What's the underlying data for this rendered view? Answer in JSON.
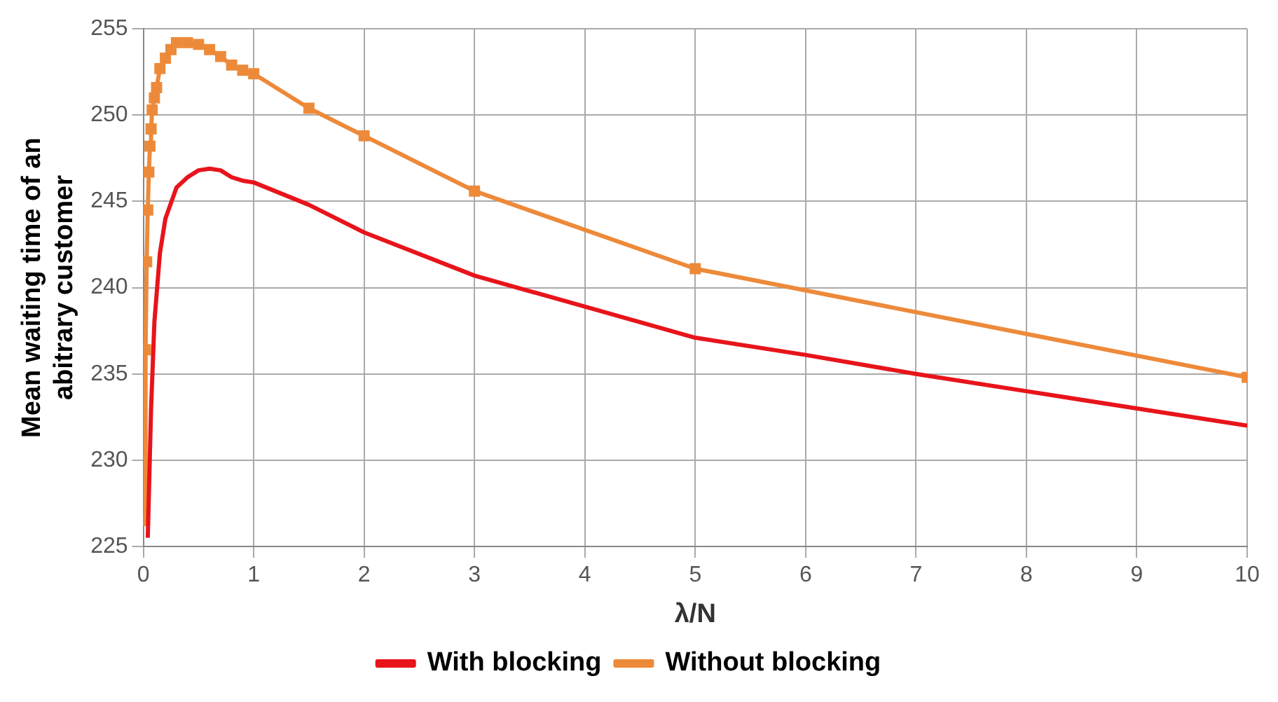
{
  "chart_data": {
    "type": "line",
    "xlabel": "λ/N",
    "ylabel": "Mean waiting time of an abitrary customer",
    "xlim": [
      0,
      10
    ],
    "xticks": [
      0,
      1,
      2,
      3,
      4,
      5,
      6,
      7,
      8,
      9,
      10
    ],
    "ylim": [
      225,
      255
    ],
    "yticks": [
      225,
      230,
      235,
      240,
      245,
      250,
      255
    ],
    "grid": true,
    "legend": "bottom",
    "series": [
      {
        "name": "With blocking",
        "color": "#e8141b",
        "marker": "none",
        "x": [
          0.04,
          0.05,
          0.07,
          0.1,
          0.15,
          0.2,
          0.3,
          0.4,
          0.5,
          0.6,
          0.7,
          0.8,
          0.9,
          1,
          1.5,
          2,
          3,
          4,
          5,
          6,
          7,
          8,
          9,
          10
        ],
        "values": [
          225.5,
          228,
          233,
          238,
          242,
          244,
          245.8,
          246.4,
          246.8,
          246.9,
          246.8,
          246.4,
          246.2,
          246.1,
          244.8,
          243.2,
          240.7,
          238.9,
          237.1,
          236.1,
          235,
          234,
          233,
          232
        ]
      },
      {
        "name": "Without blocking",
        "color": "#ed8a3a",
        "marker": "square",
        "x": [
          0.01,
          0.02,
          0.03,
          0.04,
          0.05,
          0.06,
          0.07,
          0.08,
          0.1,
          0.12,
          0.15,
          0.2,
          0.25,
          0.3,
          0.4,
          0.5,
          0.6,
          0.7,
          0.8,
          0.9,
          1,
          1.5,
          2,
          3,
          5,
          10
        ],
        "values": [
          226.5,
          236.4,
          241.5,
          244.5,
          246.7,
          248.2,
          249.2,
          250.3,
          251,
          251.6,
          252.7,
          253.3,
          253.8,
          254.2,
          254.2,
          254.1,
          253.8,
          253.4,
          252.9,
          252.6,
          252.4,
          250.4,
          248.8,
          245.6,
          241.1,
          234.8
        ]
      }
    ]
  }
}
